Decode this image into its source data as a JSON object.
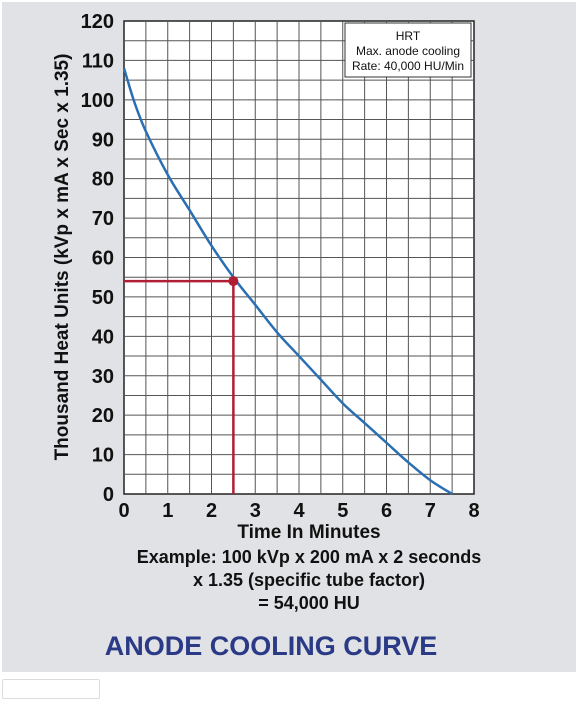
{
  "chart_data": {
    "type": "line",
    "title": "ANODE COOLING CURVE",
    "xlabel": "Time In Minutes",
    "ylabel": "Thousand Heat Units (kVp x mA x Sec x 1.35)",
    "xlim": [
      0,
      8
    ],
    "ylim": [
      0,
      120
    ],
    "x_ticks": [
      "0",
      "1",
      "2",
      "3",
      "4",
      "5",
      "6",
      "7",
      "8"
    ],
    "y_ticks": [
      "0",
      "10",
      "20",
      "30",
      "40",
      "50",
      "60",
      "70",
      "80",
      "90",
      "100",
      "110",
      "120"
    ],
    "grid": true,
    "legend_box": {
      "lines": [
        "HRT",
        "Max. anode cooling",
        "Rate: 40,000 HU/Min"
      ],
      "placement": "top-right"
    },
    "series": [
      {
        "x": [
          0,
          0.25,
          0.5,
          1,
          1.5,
          2,
          2.5,
          3,
          3.5,
          4,
          4.5,
          5,
          5.5,
          6,
          6.5,
          7,
          7.5
        ],
        "y": [
          108,
          99,
          92,
          81,
          72,
          63,
          55,
          48,
          41,
          35,
          29,
          23,
          18,
          13,
          8,
          3.5,
          0
        ],
        "color": "#2a6fb2"
      }
    ],
    "highlight_point": {
      "x": 2.5,
      "y": 54,
      "color": "#b01e35"
    },
    "annotation": [
      "Example: 100 kVp x 200 mA x 2 seconds",
      "x 1.35 (specific tube factor)",
      "= 54,000 HU"
    ]
  }
}
